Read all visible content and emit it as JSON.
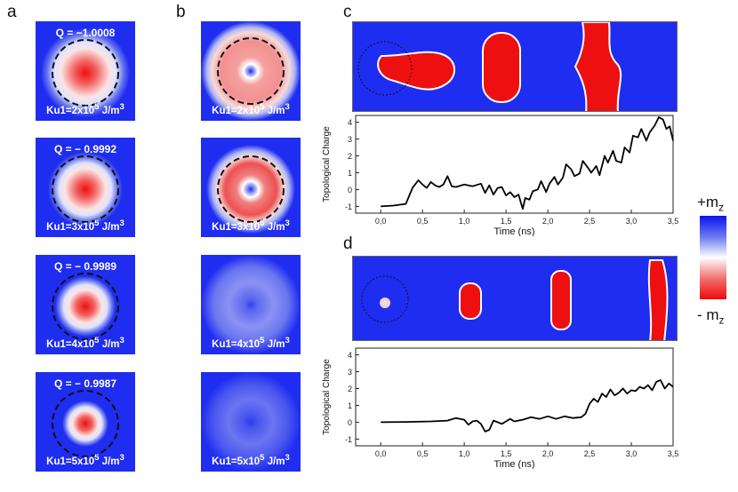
{
  "panels": {
    "a": "a",
    "b": "b",
    "c": "c",
    "d": "d"
  },
  "colors": {
    "blue": "#1f2df0",
    "red": "#e81010",
    "white": "#ffffff"
  },
  "panel_a": [
    {
      "q": "Q = −1.0008",
      "ku_main": "Ku1=2x10",
      "ku_exp": "5",
      "ku_unit": " J/m",
      "ku_unit_exp": "3"
    },
    {
      "q": "Q = − 0.9992",
      "ku_main": "Ku1=3x10",
      "ku_exp": "5",
      "ku_unit": " J/m",
      "ku_unit_exp": "3"
    },
    {
      "q": "Q = − 0.9989",
      "ku_main": "Ku1=4x10",
      "ku_exp": "5",
      "ku_unit": " J/m",
      "ku_unit_exp": "3"
    },
    {
      "q": "Q = − 0.9987",
      "ku_main": "Ku1=5x10",
      "ku_exp": "5",
      "ku_unit": " J/m",
      "ku_unit_exp": "3"
    }
  ],
  "panel_b": [
    {
      "ku_main": "Ku1=2x10",
      "ku_exp": "5",
      "ku_unit": " J/m",
      "ku_unit_exp": "3"
    },
    {
      "ku_main": "Ku1=3x10",
      "ku_exp": "5",
      "ku_unit": " J/m",
      "ku_unit_exp": "3"
    },
    {
      "ku_main": "Ku1=4x10",
      "ku_exp": "5",
      "ku_unit": " J/m",
      "ku_unit_exp": "3"
    },
    {
      "ku_main": "Ku1=5x10",
      "ku_exp": "5",
      "ku_unit": " J/m",
      "ku_unit_exp": "3"
    }
  ],
  "colorbar": {
    "top_label": "+m",
    "top_sub": "z",
    "bottom_label": "- m",
    "bottom_sub": "z"
  },
  "chart_data": [
    {
      "panel": "c",
      "type": "line",
      "xlabel": "Time (ns)",
      "ylabel": "Topological Charge",
      "xlim": [
        -0.3,
        3.5
      ],
      "ylim": [
        -1.4,
        4.4
      ],
      "xticks": [
        "0,0",
        "0,5",
        "1,0",
        "1,5",
        "2,0",
        "2,5",
        "3,0",
        "3,5"
      ],
      "yticks": [
        "-1",
        "0",
        "1",
        "2",
        "3",
        "4"
      ],
      "x": [
        0.0,
        0.15,
        0.3,
        0.38,
        0.45,
        0.5,
        0.55,
        0.6,
        0.65,
        0.7,
        0.75,
        0.8,
        0.85,
        0.9,
        1.0,
        1.1,
        1.2,
        1.25,
        1.3,
        1.35,
        1.4,
        1.45,
        1.5,
        1.55,
        1.6,
        1.65,
        1.7,
        1.73,
        1.78,
        1.82,
        1.88,
        1.92,
        1.98,
        2.02,
        2.08,
        2.12,
        2.18,
        2.22,
        2.28,
        2.32,
        2.38,
        2.42,
        2.48,
        2.52,
        2.58,
        2.62,
        2.68,
        2.72,
        2.78,
        2.82,
        2.88,
        2.92,
        2.98,
        3.02,
        3.08,
        3.12,
        3.18,
        3.22,
        3.28,
        3.33,
        3.38,
        3.42,
        3.46,
        3.5
      ],
      "y": [
        -1.0,
        -0.95,
        -0.85,
        0.1,
        0.55,
        0.3,
        0.1,
        0.45,
        0.25,
        0.15,
        0.3,
        0.8,
        0.2,
        0.15,
        0.3,
        0.2,
        0.35,
        -0.2,
        0.25,
        -0.3,
        0.1,
        0.15,
        -0.35,
        -0.15,
        -0.45,
        -0.3,
        -1.15,
        -0.5,
        -0.6,
        -0.1,
        0.0,
        0.5,
        -0.15,
        0.35,
        0.75,
        0.3,
        0.7,
        1.5,
        1.2,
        0.8,
        0.95,
        1.7,
        1.3,
        1.0,
        1.4,
        0.85,
        2.0,
        1.6,
        2.3,
        1.7,
        1.6,
        2.5,
        2.2,
        3.2,
        3.1,
        3.6,
        2.9,
        3.4,
        3.8,
        4.3,
        4.15,
        3.6,
        3.75,
        2.9
      ]
    },
    {
      "panel": "d",
      "type": "line",
      "xlabel": "Time (ns)",
      "ylabel": "Topological Charge",
      "xlim": [
        -0.3,
        3.5
      ],
      "ylim": [
        -1.4,
        4.4
      ],
      "xticks": [
        "0,0",
        "0,5",
        "1,0",
        "1,5",
        "2,0",
        "2,5",
        "3,0",
        "3,5"
      ],
      "yticks": [
        "-1",
        "0",
        "1",
        "2",
        "3",
        "4"
      ],
      "x": [
        0.0,
        0.3,
        0.6,
        0.8,
        0.9,
        1.0,
        1.05,
        1.1,
        1.15,
        1.2,
        1.25,
        1.3,
        1.35,
        1.4,
        1.45,
        1.5,
        1.55,
        1.6,
        1.7,
        1.8,
        1.9,
        2.0,
        2.1,
        2.2,
        2.3,
        2.4,
        2.45,
        2.5,
        2.55,
        2.6,
        2.65,
        2.7,
        2.75,
        2.8,
        2.85,
        2.9,
        2.95,
        3.0,
        3.05,
        3.1,
        3.15,
        3.2,
        3.25,
        3.3,
        3.35,
        3.4,
        3.45,
        3.5
      ],
      "y": [
        0.0,
        0.02,
        0.05,
        0.1,
        0.25,
        0.15,
        -0.15,
        0.05,
        0.1,
        -0.1,
        -0.55,
        -0.45,
        0.1,
        0.0,
        -0.1,
        0.05,
        0.2,
        0.05,
        0.15,
        0.3,
        0.2,
        0.35,
        0.2,
        0.35,
        0.25,
        0.3,
        0.5,
        1.1,
        1.4,
        1.2,
        1.7,
        1.5,
        1.95,
        1.6,
        1.75,
        2.0,
        1.7,
        1.9,
        1.85,
        2.1,
        2.0,
        2.2,
        1.9,
        2.4,
        2.5,
        2.0,
        2.3,
        2.1
      ]
    }
  ]
}
